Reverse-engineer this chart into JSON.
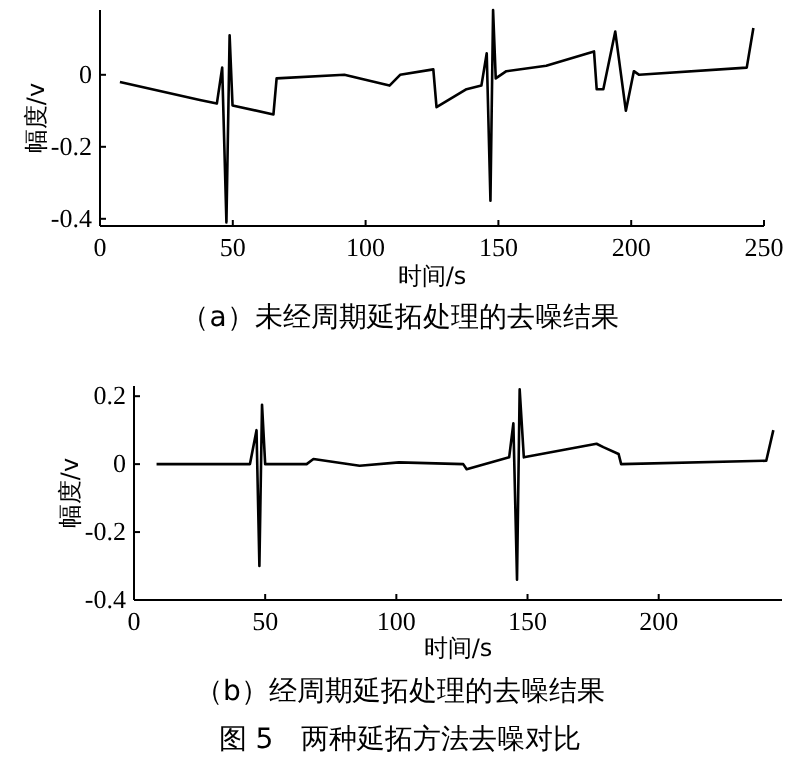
{
  "chart_data": [
    {
      "type": "line",
      "title": "（a）未经周期延拓处理的去噪结果",
      "xlabel": "时间/s",
      "ylabel": "幅度/v",
      "xlim": [
        0,
        250
      ],
      "ylim": [
        -0.42,
        0.18
      ],
      "xticks": [
        0,
        50,
        100,
        150,
        200,
        250
      ],
      "yticks": [
        -0.4,
        -0.2,
        0
      ],
      "grid": false,
      "x": [
        7.5,
        37.6,
        44,
        46,
        47.6,
        48.8,
        49.9,
        65.3,
        66.5,
        92,
        109,
        113,
        125.5,
        126.7,
        138,
        143.6,
        145.6,
        147,
        148,
        149,
        153,
        168,
        186,
        187,
        189.5,
        194,
        198,
        201,
        203,
        243.5,
        246
      ],
      "series": [
        {
          "color": "#000000",
          "values": [
            -0.02,
            -0.07,
            -0.08,
            0.02,
            -0.41,
            0.11,
            -0.085,
            -0.11,
            -0.01,
            0,
            -0.03,
            0,
            0.015,
            -0.09,
            -0.04,
            -0.03,
            0.06,
            -0.35,
            0.18,
            -0.01,
            0.01,
            0.025,
            0.065,
            -0.04,
            -0.04,
            0.12,
            -0.1,
            0.01,
            0,
            0.02,
            0.13
          ]
        }
      ]
    },
    {
      "type": "line",
      "title": "（b）经周期延拓处理的去噪结果",
      "xlabel": "时间/s",
      "ylabel": "幅度/v",
      "xlim": [
        0,
        247
      ],
      "ylim": [
        -0.4,
        0.23
      ],
      "xticks": [
        0,
        50,
        100,
        150,
        200
      ],
      "yticks": [
        -0.4,
        -0.2,
        0,
        0.2
      ],
      "grid": false,
      "annotations": [
        "图 5　两种延拓方法去噪对比"
      ],
      "x": [
        8.6,
        44.2,
        46.7,
        47.8,
        48.8,
        50,
        65.8,
        68.4,
        86,
        101,
        125.5,
        126.8,
        143,
        144.6,
        146,
        147,
        148.6,
        176.3,
        178.9,
        184.7,
        185.7,
        241,
        243.7
      ],
      "series": [
        {
          "color": "#000000",
          "values": [
            0,
            0,
            0.1,
            -0.3,
            0.175,
            0,
            0,
            0.015,
            -0.005,
            0.005,
            0,
            -0.015,
            0.02,
            0.12,
            -0.34,
            0.22,
            0.02,
            0.06,
            0.05,
            0.03,
            0,
            0.01,
            0.1
          ]
        }
      ]
    }
  ]
}
